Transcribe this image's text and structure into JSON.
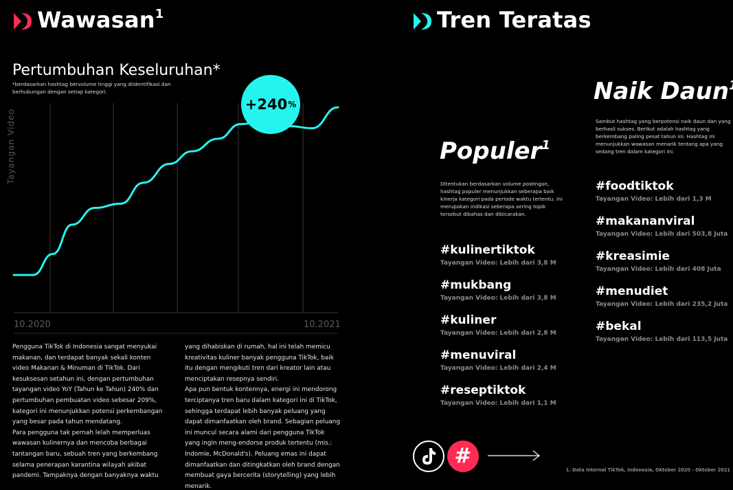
{
  "left": {
    "title": "Wawasan",
    "title_sup": "1",
    "subtitle": "Pertumbuhan Keseluruhan*",
    "note": "*berdasarkan hashtag bervolume tinggi yang diidentifikasi dan berhubungan dengan setiap kategori.",
    "growth_value": "+240",
    "growth_unit": "%",
    "body_col1": [
      "Pengguna TikTok di Indonesia sangat menyukai makanan, dan terdapat banyak sekali konten video Makanan & Minuman di TikTok. Dari kesuksesan setahun ini, dengan pertumbuhan tayangan video YoY (Tahun ke Tahun) 240% dan pertumbuhan pembuatan video sebesar 209%, kategori ini menunjukkan potensi perkembangan yang besar pada tahun mendatang.",
      "Para pengguna tak pernah lelah memperluas wawasan kulinernya dan mencoba berbagai tantangan baru, sebuah tren yang berkembang selama penerapan karantina wilayah akibat pandemi. Tampaknya dengan banyaknya waktu"
    ],
    "body_col2": [
      "yang dihabiskan di rumah, hal ini telah memicu kreativitas kuliner banyak pengguna TikTok, baik itu dengan mengikuti tren dari kreator lain atau menciptakan resepnya sendiri.",
      "Apa pun bentuk kontennya, energi ini mendorong terciptanya tren baru dalam kategori ini di TikTok, sehingga terdapat lebih banyak peluang yang dapat dimanfaatkan oleh brand. Sebagian peluang ini muncul secara alami dari pengguna TikTok yang ingin meng-endorse produk tertentu (mis.: Indomie, McDonald's). Peluang emas ini dapat dimanfaatkan dan ditingkatkan oleh brand dengan membuat gaya bercerita (storytelling) yang lebih menarik."
    ]
  },
  "chart_data": {
    "type": "line",
    "title": "",
    "xlabel": "",
    "ylabel": "Tayangan Video",
    "x_tick_labels": [
      "10.2020",
      "10.2021"
    ],
    "x": [
      0,
      0.06,
      0.12,
      0.18,
      0.25,
      0.33,
      0.4,
      0.48,
      0.55,
      0.63,
      0.7,
      0.78,
      0.85,
      0.92,
      1.0
    ],
    "y": [
      0.18,
      0.18,
      0.28,
      0.42,
      0.5,
      0.52,
      0.62,
      0.71,
      0.77,
      0.83,
      0.9,
      0.92,
      0.89,
      0.88,
      0.98
    ],
    "series_color": "#25F4EE",
    "grid": "vertical"
  },
  "right": {
    "title": "Tren Teratas",
    "popular": {
      "heading": "Populer",
      "heading_sup": "1",
      "description": "Ditentukan berdasarkan volume postingan, hashtag populer menunjukkan seberapa baik kinerja kategori pada periode waktu tertentu. Ini merupakan indikasi seberapa sering topik tersebut dibahas dan dibicarakan.",
      "tags": [
        {
          "name": "#kulinertiktok",
          "views": "Tayangan Video: Lebih dari 3,8 M"
        },
        {
          "name": "#mukbang",
          "views": "Tayangan Video: Lebih dari 3,8 M"
        },
        {
          "name": "#kuliner",
          "views": "Tayangan Video: Lebih dari 2,8 M"
        },
        {
          "name": "#menuviral",
          "views": "Tayangan Video: Lebih dari 2,4 M"
        },
        {
          "name": "#reseptiktok",
          "views": "Tayangan Video: Lebih dari 1,1 M"
        }
      ]
    },
    "rising": {
      "heading": "Naik Daun",
      "heading_sup": "1",
      "description": "Sambut hashtag yang berpotensi naik daun dan yang berhasil sukses. Berikut adalah hashtag yang berkembang paling pesat tahun ini. Hashtag ini menunjukkan wawasan menarik tentang apa yang sedang tren dalam kategori ini.",
      "tags": [
        {
          "name": "#foodtiktok",
          "views": "Tayangan Video: Lebih dari 1,3 M"
        },
        {
          "name": "#makananviral",
          "views": "Tayangan Video: Lebih dari 503,8 Juta"
        },
        {
          "name": "#kreasimie",
          "views": "Tayangan Video: Lebih dari 408 Juta"
        },
        {
          "name": "#menudiet",
          "views": "Tayangan Video: Lebih dari 235,2 Juta"
        },
        {
          "name": "#bekal",
          "views": "Tayangan Video: Lebih dari 113,5 Juta"
        }
      ]
    },
    "hash_symbol": "#",
    "footnote": "1. Data Internal TikTok, Indonesia, Oktober 2020 - Oktober 2021"
  },
  "colors": {
    "pink": "#FE2C55",
    "cyan": "#25F4EE",
    "background": "#000000"
  },
  "icons": [
    "brand-mark-icon",
    "tiktok-logo-icon",
    "hashtag-icon",
    "arrow-right-icon"
  ]
}
